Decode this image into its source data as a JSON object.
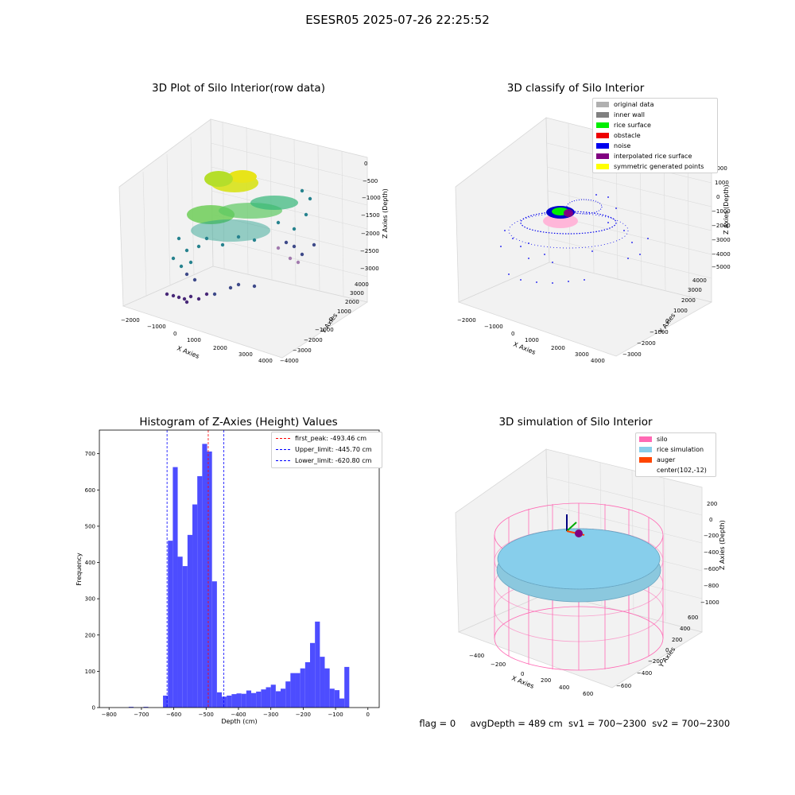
{
  "figure": {
    "suptitle": "ESESR05 2025-07-26 22:25:52"
  },
  "panels": {
    "raw": {
      "title": "3D Plot of Silo Interior(row data)",
      "xlabel": "X Axies",
      "ylabel": "Y Axies",
      "zlabel": "Z Axies (Depth)",
      "xticks": [
        "−2000",
        "−1000",
        "0",
        "1000",
        "2000",
        "3000",
        "4000"
      ],
      "yticks": [
        "−4000",
        "−3000",
        "−2000",
        "−1000",
        "0",
        "1000",
        "2000",
        "3000",
        "4000"
      ],
      "zticks": [
        "0",
        "−500",
        "−1000",
        "−1500",
        "−2000",
        "−2500",
        "−3000"
      ]
    },
    "classify": {
      "title": "3D classify of Silo Interior",
      "xlabel": "X Axies",
      "ylabel": "Y Axies",
      "zlabel": "Z Axies (Depth)",
      "xticks": [
        "−2000",
        "−1000",
        "0",
        "1000",
        "2000",
        "3000",
        "4000"
      ],
      "yticks": [
        "−3000",
        "−2000",
        "−1000",
        "0",
        "1000",
        "2000",
        "3000",
        "4000"
      ],
      "zticks": [
        "2000",
        "1000",
        "0",
        "−1000",
        "−2000",
        "−3000",
        "−4000",
        "−5000"
      ],
      "legend": [
        {
          "label": "original data",
          "color": "#b0b0b0"
        },
        {
          "label": "inner wall",
          "color": "#808080"
        },
        {
          "label": "rice surface",
          "color": "#00ee00"
        },
        {
          "label": "obstacle",
          "color": "#ee0000"
        },
        {
          "label": "noise",
          "color": "#0000ee"
        },
        {
          "label": "interpolated rice surface",
          "color": "#800080"
        },
        {
          "label": "symmetric generated points",
          "color": "#ffff00"
        }
      ]
    },
    "simulation": {
      "title": "3D simulation of Silo Interior",
      "xlabel": "X Axies",
      "ylabel": "Y Axies",
      "zlabel": "Z Axies (Depth)",
      "xticks": [
        "−400",
        "−200",
        "0",
        "200",
        "400",
        "600"
      ],
      "yticks": [
        "−600",
        "−400",
        "−200",
        "0",
        "200",
        "400",
        "600"
      ],
      "zticks": [
        "200",
        "0",
        "−200",
        "−400",
        "−600",
        "−800",
        "−1000"
      ],
      "legend": [
        {
          "label": "silo",
          "color": "#ff69b4"
        },
        {
          "label": "rice simulation",
          "color": "#87ceeb"
        },
        {
          "label": "auger",
          "color": "#ff4500"
        },
        {
          "label": "center(102,-12)",
          "color": ""
        }
      ]
    }
  },
  "status_line": {
    "flag": "flag = 0",
    "avg_depth": "avgDepth = 489 cm",
    "sv1": "sv1 = 700~2300",
    "sv2": "sv2 = 700~2300"
  },
  "colors": {
    "histogram_bar": "#4d4dff",
    "peak_line": "#ff0000",
    "limit_line": "#0000ff"
  },
  "chart_data": {
    "type": "bar",
    "title": "Histogram of Z-Axies (Height) Values",
    "xlabel": "Depth (cm)",
    "ylabel": "Frequency",
    "xlim": [
      -830,
      35
    ],
    "ylim": [
      0,
      765
    ],
    "xticks": [
      -800,
      -700,
      -600,
      -500,
      -400,
      -300,
      -200,
      -100,
      0
    ],
    "yticks": [
      0,
      100,
      200,
      300,
      400,
      500,
      600,
      700
    ],
    "bin_width": 15.15,
    "bins": [
      {
        "x0": -800.0,
        "value": 0
      },
      {
        "x0": -784.8,
        "value": 0
      },
      {
        "x0": -769.7,
        "value": 0
      },
      {
        "x0": -754.5,
        "value": 0
      },
      {
        "x0": -739.4,
        "value": 2
      },
      {
        "x0": -724.2,
        "value": 0
      },
      {
        "x0": -709.1,
        "value": 0
      },
      {
        "x0": -693.9,
        "value": 2
      },
      {
        "x0": -678.8,
        "value": 0
      },
      {
        "x0": -663.6,
        "value": 0
      },
      {
        "x0": -648.5,
        "value": 0
      },
      {
        "x0": -633.3,
        "value": 33
      },
      {
        "x0": -618.2,
        "value": 460
      },
      {
        "x0": -603.0,
        "value": 663
      },
      {
        "x0": -587.9,
        "value": 416
      },
      {
        "x0": -572.7,
        "value": 390
      },
      {
        "x0": -557.6,
        "value": 476
      },
      {
        "x0": -542.4,
        "value": 560
      },
      {
        "x0": -527.3,
        "value": 638
      },
      {
        "x0": -512.1,
        "value": 727
      },
      {
        "x0": -497.0,
        "value": 706
      },
      {
        "x0": -481.8,
        "value": 348
      },
      {
        "x0": -466.7,
        "value": 42
      },
      {
        "x0": -451.5,
        "value": 30
      },
      {
        "x0": -436.4,
        "value": 33
      },
      {
        "x0": -421.2,
        "value": 37
      },
      {
        "x0": -406.1,
        "value": 39
      },
      {
        "x0": -390.9,
        "value": 38
      },
      {
        "x0": -375.8,
        "value": 47
      },
      {
        "x0": -360.6,
        "value": 40
      },
      {
        "x0": -345.5,
        "value": 44
      },
      {
        "x0": -330.3,
        "value": 50
      },
      {
        "x0": -315.2,
        "value": 56
      },
      {
        "x0": -300.0,
        "value": 63
      },
      {
        "x0": -284.8,
        "value": 45
      },
      {
        "x0": -269.7,
        "value": 52
      },
      {
        "x0": -254.5,
        "value": 72
      },
      {
        "x0": -239.4,
        "value": 95
      },
      {
        "x0": -224.2,
        "value": 95
      },
      {
        "x0": -209.1,
        "value": 108
      },
      {
        "x0": -193.9,
        "value": 125
      },
      {
        "x0": -178.8,
        "value": 178
      },
      {
        "x0": -163.6,
        "value": 237
      },
      {
        "x0": -148.5,
        "value": 140
      },
      {
        "x0": -133.3,
        "value": 108
      },
      {
        "x0": -118.2,
        "value": 52
      },
      {
        "x0": -103.0,
        "value": 48
      },
      {
        "x0": -87.9,
        "value": 25
      },
      {
        "x0": -72.7,
        "value": 112
      }
    ],
    "vlines": [
      {
        "label": "first_peak: -493.46 cm",
        "x": -493.46,
        "color": "#ff0000"
      },
      {
        "label": "Upper_limit: -445.70 cm",
        "x": -445.7,
        "color": "#0000ff"
      },
      {
        "label": "Lower_limit: -620.80 cm",
        "x": -620.8,
        "color": "#0000ff"
      }
    ]
  }
}
